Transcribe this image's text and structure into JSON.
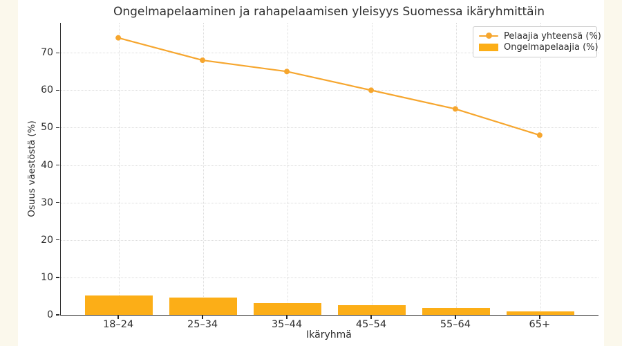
{
  "chart_data": {
    "type": "combo",
    "title": "Ongelmapelaaminen ja rahapelaamisen yleisyys Suomessa ikäryhmittäin",
    "xlabel": "Ikäryhmä",
    "ylabel": "Osuus väestöstä (%)",
    "categories": [
      "18–24",
      "25–34",
      "35–44",
      "45–54",
      "55–64",
      "65+"
    ],
    "series": [
      {
        "name": "Pelaajia yhteensä (%)",
        "type": "line",
        "marker": "circle",
        "color": "#F6A62E",
        "values": [
          74,
          68,
          65,
          60,
          55,
          48
        ]
      },
      {
        "name": "Ongelmapelaajia (%)",
        "type": "bar",
        "color": "#FCAE17",
        "values": [
          5.2,
          4.6,
          3.2,
          2.6,
          1.8,
          0.9
        ]
      }
    ],
    "ylim": [
      0,
      78
    ],
    "yticks": [
      0,
      10,
      20,
      30,
      40,
      50,
      60,
      70
    ],
    "grid": true,
    "legend_position": "upper right"
  },
  "colors": {
    "line": "#F6A62E",
    "bar": "#FCAE17",
    "figure_background": "#FFFFFF",
    "page_background": "#FBF8EC",
    "grid": "#DCDCDC",
    "spine": "#2A2A2A",
    "text": "#2E2E2E",
    "legend_border": "#CCCCCC"
  }
}
